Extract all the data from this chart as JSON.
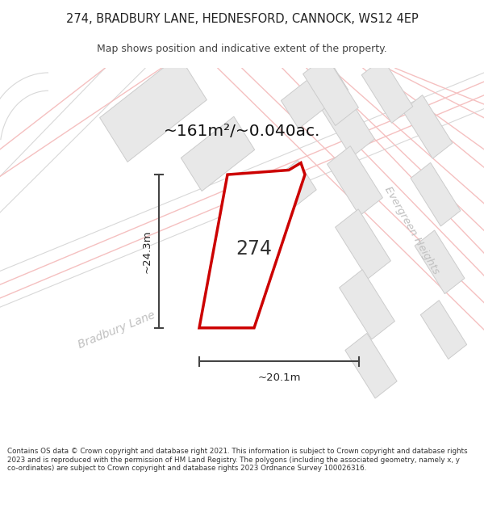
{
  "title_line1": "274, BRADBURY LANE, HEDNESFORD, CANNOCK, WS12 4EP",
  "title_line2": "Map shows position and indicative extent of the property.",
  "area_text": "~161m²/~0.040ac.",
  "label_274": "274",
  "dim_width": "~20.1m",
  "dim_height": "~24.3m",
  "street_bradbury": "Bradbury Lane",
  "street_evergreen": "Evergreen Heights",
  "footer_text": "Contains OS data © Crown copyright and database right 2021. This information is subject to Crown copyright and database rights 2023 and is reproduced with the permission of HM Land Registry. The polygons (including the associated geometry, namely x, y co-ordinates) are subject to Crown copyright and database rights 2023 Ordnance Survey 100026316.",
  "bg_color": "#ffffff",
  "map_bg": "#f7f7f7",
  "plot_stroke": "#cc0000",
  "building_fill": "#e8e8e8",
  "building_stroke": "#cccccc",
  "road_line_color": "#f5c0c0",
  "road_line_color2": "#d8d8d8",
  "dim_line_color": "#444444",
  "text_color": "#222222",
  "street_label_color": "#c0c0c0"
}
